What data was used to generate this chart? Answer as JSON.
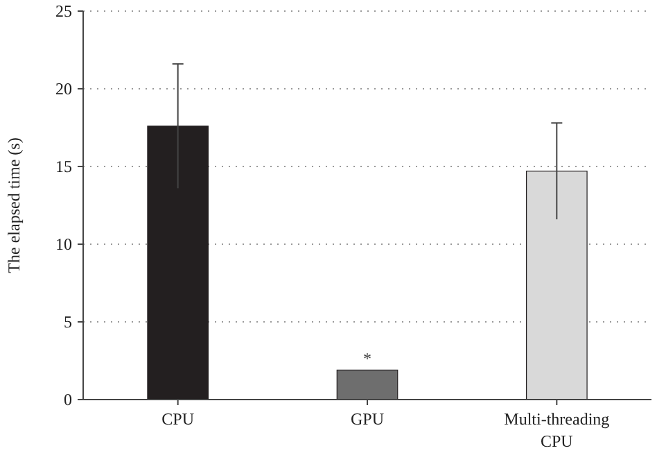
{
  "chart_data": {
    "type": "bar",
    "ylabel": "The elapsed time (s)",
    "categories": [
      "CPU",
      "GPU",
      "Multi-threading CPU"
    ],
    "values": [
      17.6,
      1.9,
      14.7
    ],
    "colors": [
      "#231f20",
      "#6e6e6e",
      "#d9d9d9"
    ],
    "errors": [
      4.0,
      null,
      3.1
    ],
    "ylim": [
      0,
      25
    ],
    "yticks": [
      0,
      5,
      10,
      15,
      20,
      25
    ],
    "grid": "y",
    "annotations": [
      {
        "text": "*",
        "x": "GPU",
        "y": 1.9
      }
    ]
  }
}
